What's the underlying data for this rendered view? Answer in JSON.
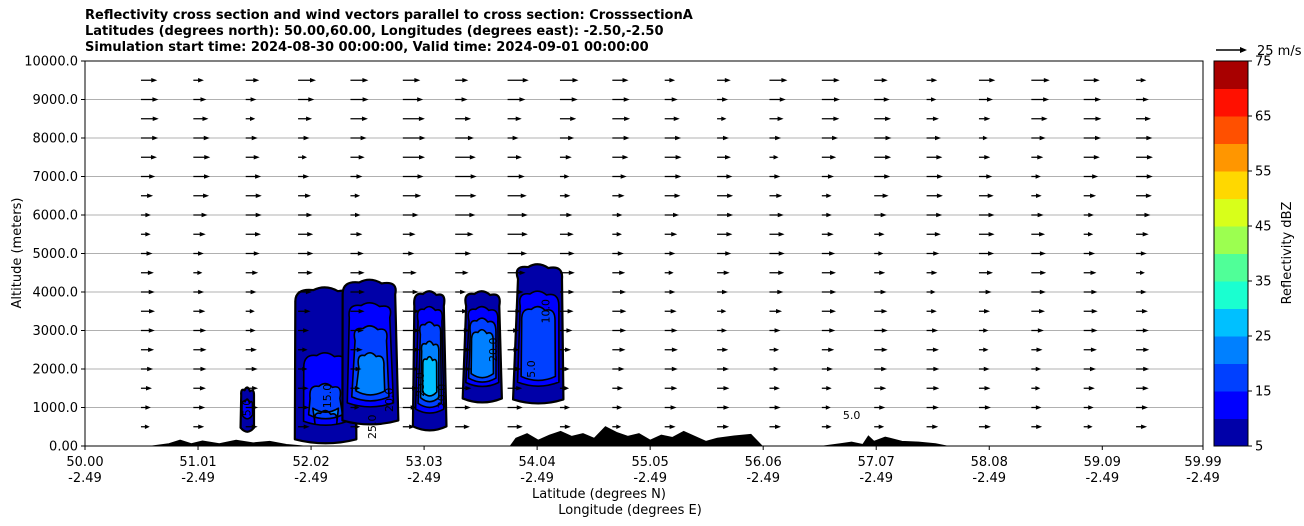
{
  "chart_data": {
    "type": "contour",
    "title": {
      "line1": "Reflectivity cross section and wind vectors parallel to cross section: CrosssectionA",
      "line2": "Latitudes (degrees north): 50.00,60.00, Longitudes (degrees east): -2.50,-2.50",
      "line3": "Simulation start time: 2024-08-30 00:00:00, Valid time: 2024-09-01 00:00:00"
    },
    "ylabel": "Altitude (meters)",
    "xlabel": "Latitude (degrees N)",
    "xlabel2": "Longitude (degrees E)",
    "xlim": [
      50.0,
      59.99
    ],
    "ylim": [
      0,
      10000
    ],
    "x_ticks": [
      {
        "lat": 50.0,
        "lat_label": "50.00",
        "lon_label": "-2.49"
      },
      {
        "lat": 51.01,
        "lat_label": "51.01",
        "lon_label": "-2.49"
      },
      {
        "lat": 52.02,
        "lat_label": "52.02",
        "lon_label": "-2.49"
      },
      {
        "lat": 53.03,
        "lat_label": "53.03",
        "lon_label": "-2.49"
      },
      {
        "lat": 54.04,
        "lat_label": "54.04",
        "lon_label": "-2.49"
      },
      {
        "lat": 55.05,
        "lat_label": "55.05",
        "lon_label": "-2.49"
      },
      {
        "lat": 56.06,
        "lat_label": "56.06",
        "lon_label": "-2.49"
      },
      {
        "lat": 57.07,
        "lat_label": "57.07",
        "lon_label": "-2.49"
      },
      {
        "lat": 58.08,
        "lat_label": "58.08",
        "lon_label": "-2.49"
      },
      {
        "lat": 59.09,
        "lat_label": "59.09",
        "lon_label": "-2.49"
      },
      {
        "lat": 59.99,
        "lat_label": "59.99",
        "lon_label": "-2.49"
      }
    ],
    "y_ticks": [
      {
        "value": 0,
        "label": "0.00"
      },
      {
        "value": 1000,
        "label": "1000.0"
      },
      {
        "value": 2000,
        "label": "2000.0"
      },
      {
        "value": 3000,
        "label": "3000.0"
      },
      {
        "value": 4000,
        "label": "4000.0"
      },
      {
        "value": 5000,
        "label": "5000.0"
      },
      {
        "value": 6000,
        "label": "6000.0"
      },
      {
        "value": 7000,
        "label": "7000.0"
      },
      {
        "value": 8000,
        "label": "8000.0"
      },
      {
        "value": 9000,
        "label": "9000.0"
      },
      {
        "value": 10000,
        "label": "10000.0"
      }
    ],
    "grid": "horizontal",
    "quiver_key": {
      "label": "25 m/s",
      "speed": 25
    },
    "colorbar": {
      "label": "Reflectivity dBZ",
      "min": 5,
      "max": 75,
      "ticks": [
        "5",
        "15",
        "25",
        "35",
        "45",
        "55",
        "65",
        "75"
      ],
      "colors": [
        "#0000a8",
        "#0000ff",
        "#0040ff",
        "#0080ff",
        "#00c0ff",
        "#1affd0",
        "#50ff98",
        "#9cff50",
        "#d8ff1a",
        "#ffd800",
        "#ff9600",
        "#ff5000",
        "#ff1000",
        "#a80000"
      ]
    },
    "contour_labels": [
      "5.0",
      "10.0",
      "15.0",
      "20.0",
      "25.0"
    ],
    "terrain": [
      [
        50.0,
        0
      ],
      [
        50.6,
        0
      ],
      [
        50.75,
        60
      ],
      [
        50.85,
        150
      ],
      [
        50.95,
        60
      ],
      [
        51.05,
        130
      ],
      [
        51.2,
        60
      ],
      [
        51.35,
        150
      ],
      [
        51.5,
        80
      ],
      [
        51.65,
        120
      ],
      [
        51.8,
        40
      ],
      [
        51.95,
        0
      ],
      [
        53.8,
        0
      ],
      [
        53.85,
        200
      ],
      [
        53.95,
        320
      ],
      [
        54.05,
        150
      ],
      [
        54.15,
        280
      ],
      [
        54.25,
        380
      ],
      [
        54.35,
        250
      ],
      [
        54.45,
        320
      ],
      [
        54.55,
        200
      ],
      [
        54.65,
        500
      ],
      [
        54.75,
        350
      ],
      [
        54.85,
        250
      ],
      [
        54.95,
        320
      ],
      [
        55.05,
        150
      ],
      [
        55.15,
        280
      ],
      [
        55.25,
        220
      ],
      [
        55.35,
        380
      ],
      [
        55.45,
        250
      ],
      [
        55.55,
        120
      ],
      [
        55.65,
        200
      ],
      [
        55.8,
        260
      ],
      [
        55.95,
        300
      ],
      [
        56.05,
        0
      ],
      [
        56.6,
        0
      ],
      [
        56.75,
        60
      ],
      [
        56.85,
        100
      ],
      [
        56.95,
        40
      ],
      [
        57.0,
        260
      ],
      [
        57.05,
        120
      ],
      [
        57.15,
        230
      ],
      [
        57.3,
        120
      ],
      [
        57.45,
        100
      ],
      [
        57.6,
        60
      ],
      [
        57.7,
        0
      ],
      [
        59.99,
        0
      ]
    ],
    "cells": [
      {
        "center_lat": 51.45,
        "center_alt": 1000,
        "width_deg": 0.12,
        "levels": [
          [
            1500,
            5
          ],
          [
            1200,
            10
          ]
        ]
      },
      {
        "center_lat": 52.15,
        "center_alt": 1600,
        "width_deg": 0.55,
        "levels": [
          [
            4100,
            5
          ],
          [
            2400,
            10
          ],
          [
            1600,
            15
          ],
          [
            900,
            20
          ]
        ]
      },
      {
        "center_lat": 52.55,
        "center_alt": 2000,
        "width_deg": 0.5,
        "levels": [
          [
            4300,
            5
          ],
          [
            3700,
            10
          ],
          [
            3100,
            15
          ],
          [
            2400,
            20
          ]
        ]
      },
      {
        "center_lat": 53.08,
        "center_alt": 1800,
        "width_deg": 0.3,
        "levels": [
          [
            4000,
            5
          ],
          [
            3600,
            10
          ],
          [
            3200,
            15
          ],
          [
            2700,
            20
          ],
          [
            2300,
            25
          ]
        ]
      },
      {
        "center_lat": 53.55,
        "center_alt": 2300,
        "width_deg": 0.35,
        "levels": [
          [
            4000,
            5
          ],
          [
            3600,
            10
          ],
          [
            3300,
            15
          ],
          [
            3000,
            20
          ]
        ]
      },
      {
        "center_lat": 54.05,
        "center_alt": 2500,
        "width_deg": 0.45,
        "levels": [
          [
            4700,
            5
          ],
          [
            4000,
            10
          ],
          [
            3600,
            15
          ]
        ]
      }
    ]
  }
}
